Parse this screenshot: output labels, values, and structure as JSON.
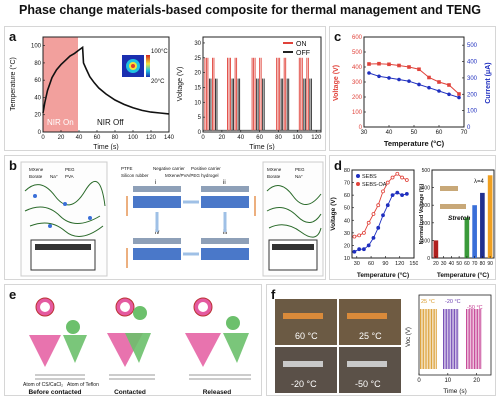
{
  "title": "Phase change materials-based composite for thermal management and TENG",
  "colors": {
    "red": "#e0423a",
    "blue": "#1f2fbf",
    "pink_shade": "#f08f8c",
    "black": "#222222"
  },
  "panels": {
    "a": {
      "label": "a",
      "left_chart": {
        "ylabel": "Temperature (°C)",
        "xlabel": "Time (s)",
        "nir_on_label": "NIR On",
        "nir_off_label": "NIR Off",
        "colorbar_max": "100°C",
        "colorbar_min": "20°C",
        "x_ticks": [
          "0",
          "20",
          "40",
          "60",
          "80",
          "100",
          "120",
          "140"
        ],
        "y_ticks": [
          "0",
          "20",
          "40",
          "60",
          "80",
          "100"
        ]
      },
      "right_chart": {
        "ylabel": "Voltage (V)",
        "xlabel": "Time (s)",
        "legend": [
          "ON",
          "OFF"
        ],
        "x_ticks": [
          "0",
          "20",
          "40",
          "60",
          "80",
          "100",
          "120"
        ],
        "y_ticks": [
          "0",
          "5",
          "10",
          "15",
          "20",
          "25",
          "30"
        ]
      }
    },
    "b": {
      "label": "b",
      "legend_left": [
        "MXene",
        "PEG",
        "Borate",
        "Na⁺",
        "PVA"
      ],
      "legend_mid": [
        "PTFE",
        "Negative carrier",
        "Positive carrier",
        "Silicon rubber",
        "MXene/PVA/PEG hydrogel"
      ],
      "legend_right": [
        "MXene",
        "PEG",
        "Borate",
        "Na⁺"
      ],
      "stage_labels": [
        "i",
        "ii",
        "iii",
        "iv"
      ]
    },
    "c": {
      "label": "c",
      "ylabel_left": "Voltage (V)",
      "ylabel_right": "Current (μA)",
      "xlabel": "Temperature (°C)",
      "x_ticks": [
        "30",
        "40",
        "50",
        "60",
        "70"
      ],
      "y_ticks_left": [
        "0",
        "100",
        "200",
        "300",
        "400",
        "500",
        "600"
      ],
      "y_ticks_right": [
        "0",
        "100",
        "200",
        "300",
        "400",
        "500"
      ]
    },
    "d": {
      "label": "d",
      "left_chart": {
        "ylabel": "Voltage (V)",
        "xlabel": "Temperature (°C)",
        "legend": [
          "SEBS",
          "SEBS-OA"
        ],
        "x_ticks": [
          "30",
          "60",
          "90",
          "120",
          "150"
        ],
        "y_ticks": [
          "10",
          "20",
          "30",
          "40",
          "50",
          "60",
          "70",
          "80"
        ]
      },
      "right_chart": {
        "ylabel": "Normalized Voltage (%)",
        "xlabel": "Temperature (°C)",
        "x_ticks": [
          "20",
          "30",
          "40",
          "50",
          "60",
          "70",
          "80",
          "90"
        ],
        "y_ticks": [
          "0",
          "100",
          "200",
          "300",
          "400",
          "500"
        ],
        "annotation_lambda": "λ=4",
        "annotation_stretch": "Stretch"
      }
    },
    "e": {
      "label": "e",
      "stage_labels": [
        "Before contacted",
        "Contacted",
        "Released"
      ],
      "atom_left": "Atom of CS/CaCl₂",
      "atom_right": "Atom of Teflon"
    },
    "f": {
      "label": "f",
      "photo_labels": [
        "60 °C",
        "25 °C",
        "-20 °C",
        "-50 °C"
      ],
      "chart": {
        "ylabel": "Voc (V)",
        "xlabel": "Time (s)",
        "series_labels": [
          "25 °C",
          "-20 °C",
          "-50 °C"
        ],
        "x_ticks": [
          "0",
          "10",
          "20"
        ]
      }
    }
  },
  "chart_data": [
    {
      "type": "line",
      "panel": "a-left",
      "xlabel": "Time (s)",
      "ylabel": "Temperature (°C)",
      "xlim": [
        0,
        140
      ],
      "ylim": [
        0,
        110
      ],
      "series": [
        {
          "x": [
            0,
            2,
            5,
            10,
            15,
            20,
            25,
            30,
            35,
            40,
            44,
            45,
            48,
            52,
            57,
            62,
            70,
            80,
            90,
            100,
            110,
            120,
            130,
            140
          ],
          "values": [
            22,
            34,
            48,
            63,
            72,
            78,
            83,
            88,
            91,
            95,
            98,
            80,
            73,
            64,
            57,
            51,
            44,
            37,
            32,
            28,
            25,
            23,
            22,
            21
          ]
        }
      ]
    },
    {
      "type": "line",
      "panel": "c",
      "xlabel": "Temperature (°C)",
      "ylabel": "Voltage (V)",
      "xlim": [
        30,
        70
      ],
      "series": [
        {
          "name": "Voltage (V)",
          "axis": "left",
          "x": [
            32,
            36,
            40,
            44,
            48,
            52,
            56,
            60,
            64,
            68
          ],
          "values": [
            420,
            422,
            418,
            410,
            400,
            385,
            330,
            300,
            280,
            220
          ]
        },
        {
          "name": "Current (μA)",
          "axis": "right",
          "x": [
            32,
            36,
            40,
            44,
            48,
            52,
            56,
            60,
            64,
            68
          ],
          "values": [
            330,
            310,
            300,
            290,
            280,
            260,
            240,
            220,
            200,
            180
          ]
        }
      ],
      "ylim_left": [
        0,
        600
      ],
      "ylim_right": [
        0,
        550
      ]
    },
    {
      "type": "line",
      "panel": "d-left",
      "xlabel": "Temperature (°C)",
      "ylabel": "Voltage (V)",
      "xlim": [
        20,
        150
      ],
      "ylim": [
        10,
        80
      ],
      "legend": "top-left",
      "series": [
        {
          "name": "SEBS",
          "x": [
            25,
            35,
            45,
            55,
            65,
            75,
            85,
            95,
            105,
            115,
            125,
            135
          ],
          "values": [
            15,
            17,
            17,
            20,
            26,
            34,
            44,
            52,
            60,
            62,
            60,
            61
          ]
        },
        {
          "name": "SEBS-OA",
          "x": [
            25,
            35,
            45,
            55,
            65,
            75,
            85,
            95,
            105,
            115,
            125,
            135
          ],
          "values": [
            27,
            28,
            30,
            38,
            45,
            52,
            63,
            70,
            74,
            77,
            74,
            72
          ]
        }
      ]
    },
    {
      "type": "bar",
      "panel": "d-right",
      "xlabel": "Temperature (°C)",
      "ylabel": "Normalized Voltage (%)",
      "categories": [
        "20",
        "30",
        "40",
        "50",
        "60",
        "70",
        "80",
        "90"
      ],
      "values": [
        100,
        0,
        0,
        0,
        230,
        300,
        370,
        470
      ],
      "ylim": [
        0,
        500
      ]
    }
  ]
}
